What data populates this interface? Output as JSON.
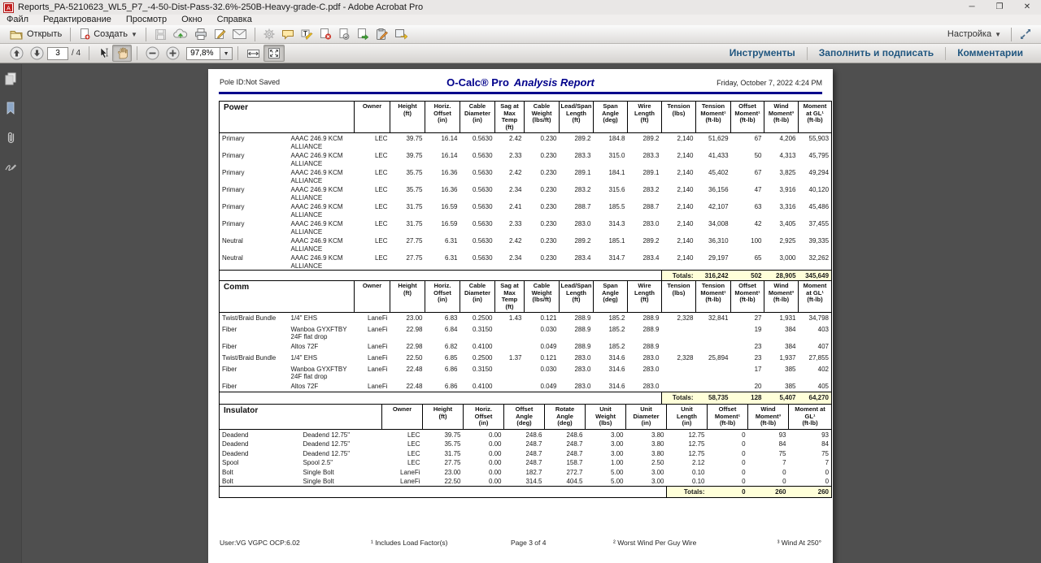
{
  "window": {
    "title": "Reports_PA-5210623_WL5_P7_-4-50-Dist-Pass-32.6%-250B-Heavy-grade-C.pdf - Adobe Acrobat Pro",
    "menus": [
      "Файл",
      "Редактирование",
      "Просмотр",
      "Окно",
      "Справка"
    ],
    "controls": {
      "minimize": "─",
      "maximize": "❐",
      "close": "✕"
    }
  },
  "toolbar": {
    "open_label": "Открыть",
    "create_label": "Создать",
    "settings_label": "Настройка",
    "caret": "▼",
    "nav": {
      "page_value": "3",
      "page_total": "/ 4",
      "zoom_value": "97,8%"
    },
    "right_tabs": [
      "Инструменты",
      "Заполнить и подписать",
      "Комментарии"
    ]
  },
  "doc": {
    "pole_id": "Pole ID:Not Saved",
    "brand": "O-Calc® Pro",
    "report_title": "Analysis Report",
    "datetime": "Friday, October 7, 2022 4:24 PM",
    "footer": {
      "user": "User:VG VGPC OCP:6.02",
      "note1": "¹ Includes Load Factor(s)",
      "page": "Page 3 of 4",
      "note2": "² Worst Wind Per Guy Wire",
      "note3": "³ Wind At 250°"
    }
  },
  "colors": {
    "accent_navy": "#00008b",
    "totals_bg": "#ffffd9",
    "tab_blue": "#20567f"
  },
  "power_table": {
    "group_label": "Power",
    "headers": [
      "Owner",
      "Height\n(ft)",
      "Horiz.\nOffset\n(in)",
      "Cable\nDiameter\n(in)",
      "Sag at\nMax\nTemp\n(ft)",
      "Cable\nWeight\n(lbs/ft)",
      "Lead/Span\nLength\n(ft)",
      "Span\nAngle\n(deg)",
      "Wire\nLength\n(ft)",
      "Tension\n(lbs)",
      "Tension\nMoment¹\n(ft-lb)",
      "Offset\nMoment¹\n(ft-lb)",
      "Wind\nMoment³\n(ft-lb)",
      "Moment\nat GL¹\n(ft-lb)"
    ],
    "rows": [
      [
        "Primary",
        "AAAC 246.9 KCM\nALLIANCE",
        "LEC",
        "39.75",
        "16.14",
        "0.5630",
        "2.42",
        "0.230",
        "289.2",
        "184.8",
        "289.2",
        "2,140",
        "51,629",
        "67",
        "4,206",
        "55,903"
      ],
      [
        "Primary",
        "AAAC 246.9 KCM\nALLIANCE",
        "LEC",
        "39.75",
        "16.14",
        "0.5630",
        "2.33",
        "0.230",
        "283.3",
        "315.0",
        "283.3",
        "2,140",
        "41,433",
        "50",
        "4,313",
        "45,795"
      ],
      [
        "Primary",
        "AAAC 246.9 KCM\nALLIANCE",
        "LEC",
        "35.75",
        "16.36",
        "0.5630",
        "2.42",
        "0.230",
        "289.1",
        "184.1",
        "289.1",
        "2,140",
        "45,402",
        "67",
        "3,825",
        "49,294"
      ],
      [
        "Primary",
        "AAAC 246.9 KCM\nALLIANCE",
        "LEC",
        "35.75",
        "16.36",
        "0.5630",
        "2.34",
        "0.230",
        "283.2",
        "315.6",
        "283.2",
        "2,140",
        "36,156",
        "47",
        "3,916",
        "40,120"
      ],
      [
        "Primary",
        "AAAC 246.9 KCM\nALLIANCE",
        "LEC",
        "31.75",
        "16.59",
        "0.5630",
        "2.41",
        "0.230",
        "288.7",
        "185.5",
        "288.7",
        "2,140",
        "42,107",
        "63",
        "3,316",
        "45,486"
      ],
      [
        "Primary",
        "AAAC 246.9 KCM\nALLIANCE",
        "LEC",
        "31.75",
        "16.59",
        "0.5630",
        "2.33",
        "0.230",
        "283.0",
        "314.3",
        "283.0",
        "2,140",
        "34,008",
        "42",
        "3,405",
        "37,455"
      ],
      [
        "Neutral",
        "AAAC 246.9 KCM\nALLIANCE",
        "LEC",
        "27.75",
        "6.31",
        "0.5630",
        "2.42",
        "0.230",
        "289.2",
        "185.1",
        "289.2",
        "2,140",
        "36,310",
        "100",
        "2,925",
        "39,335"
      ],
      [
        "Neutral",
        "AAAC 246.9 KCM\nALLIANCE",
        "LEC",
        "27.75",
        "6.31",
        "0.5630",
        "2.34",
        "0.230",
        "283.4",
        "314.7",
        "283.4",
        "2,140",
        "29,197",
        "65",
        "3,000",
        "32,262"
      ]
    ],
    "totals_label": "Totals:",
    "totals": [
      "316,242",
      "502",
      "28,905",
      "345,649"
    ]
  },
  "comm_table": {
    "group_label": "Comm",
    "headers": [
      "Owner",
      "Height\n(ft)",
      "Horiz.\nOffset\n(in)",
      "Cable\nDiameter\n(in)",
      "Sag at\nMax\nTemp\n(ft)",
      "Cable\nWeight\n(lbs/ft)",
      "Lead/Span\nLength\n(ft)",
      "Span\nAngle\n(deg)",
      "Wire\nLength\n(ft)",
      "Tension\n(lbs)",
      "Tension\nMoment¹\n(ft-lb)",
      "Offset\nMoment¹\n(ft-lb)",
      "Wind\nMoment³\n(ft-lb)",
      "Moment\nat GL¹\n(ft-lb)"
    ],
    "rows": [
      [
        "Twist/Braid Bundle",
        "1/4\" EHS",
        "LaneFi",
        "23.00",
        "6.83",
        "0.2500",
        "1.43",
        "0.121",
        "288.9",
        "185.2",
        "288.9",
        "2,328",
        "32,841",
        "27",
        "1,931",
        "34,798"
      ],
      [
        "Fiber",
        "Wanboa GYXFTBY\n24F flat drop",
        "LaneFi",
        "22.98",
        "6.84",
        "0.3150",
        "",
        "0.030",
        "288.9",
        "185.2",
        "288.9",
        "",
        "",
        "19",
        "384",
        "403"
      ],
      [
        "Fiber",
        "Altos 72F",
        "LaneFi",
        "22.98",
        "6.82",
        "0.4100",
        "",
        "0.049",
        "288.9",
        "185.2",
        "288.9",
        "",
        "",
        "23",
        "384",
        "407"
      ],
      [
        "Twist/Braid Bundle",
        "1/4\" EHS",
        "LaneFi",
        "22.50",
        "6.85",
        "0.2500",
        "1.37",
        "0.121",
        "283.0",
        "314.6",
        "283.0",
        "2,328",
        "25,894",
        "23",
        "1,937",
        "27,855"
      ],
      [
        "Fiber",
        "Wanboa GYXFTBY\n24F flat drop",
        "LaneFi",
        "22.48",
        "6.86",
        "0.3150",
        "",
        "0.030",
        "283.0",
        "314.6",
        "283.0",
        "",
        "",
        "17",
        "385",
        "402"
      ],
      [
        "Fiber",
        "Altos 72F",
        "LaneFi",
        "22.48",
        "6.86",
        "0.4100",
        "",
        "0.049",
        "283.0",
        "314.6",
        "283.0",
        "",
        "",
        "20",
        "385",
        "405"
      ]
    ],
    "totals_label": "Totals:",
    "totals": [
      "58,735",
      "128",
      "5,407",
      "64,270"
    ]
  },
  "insulator_table": {
    "group_label": "Insulator",
    "headers": [
      "Owner",
      "Height\n(ft)",
      "Horiz.\nOffset\n(in)",
      "Offset\nAngle\n(deg)",
      "Rotate\nAngle\n(deg)",
      "Unit\nWeight\n(lbs)",
      "Unit\nDiameter\n(in)",
      "Unit\nLength\n(in)",
      "Offset\nMoment¹\n(ft-lb)",
      "Wind\nMoment³\n(ft-lb)",
      "Moment at\nGL¹\n(ft-lb)"
    ],
    "rows": [
      [
        "Deadend",
        "Deadend 12.75\"",
        "LEC",
        "39.75",
        "0.00",
        "248.6",
        "248.6",
        "3.00",
        "3.80",
        "12.75",
        "0",
        "93",
        "93"
      ],
      [
        "Deadend",
        "Deadend 12.75\"",
        "LEC",
        "35.75",
        "0.00",
        "248.7",
        "248.7",
        "3.00",
        "3.80",
        "12.75",
        "0",
        "84",
        "84"
      ],
      [
        "Deadend",
        "Deadend 12.75\"",
        "LEC",
        "31.75",
        "0.00",
        "248.7",
        "248.7",
        "3.00",
        "3.80",
        "12.75",
        "0",
        "75",
        "75"
      ],
      [
        "Spool",
        "Spool 2.5\"",
        "LEC",
        "27.75",
        "0.00",
        "248.7",
        "158.7",
        "1.00",
        "2.50",
        "2.12",
        "0",
        "7",
        "7"
      ],
      [
        "Bolt",
        "Single Bolt",
        "LaneFi",
        "23.00",
        "0.00",
        "182.7",
        "272.7",
        "5.00",
        "3.00",
        "0.10",
        "0",
        "0",
        "0"
      ],
      [
        "Bolt",
        "Single Bolt",
        "LaneFi",
        "22.50",
        "0.00",
        "314.5",
        "404.5",
        "5.00",
        "3.00",
        "0.10",
        "0",
        "0",
        "0"
      ]
    ],
    "totals_label": "Totals:",
    "totals": [
      "0",
      "260",
      "260"
    ]
  }
}
